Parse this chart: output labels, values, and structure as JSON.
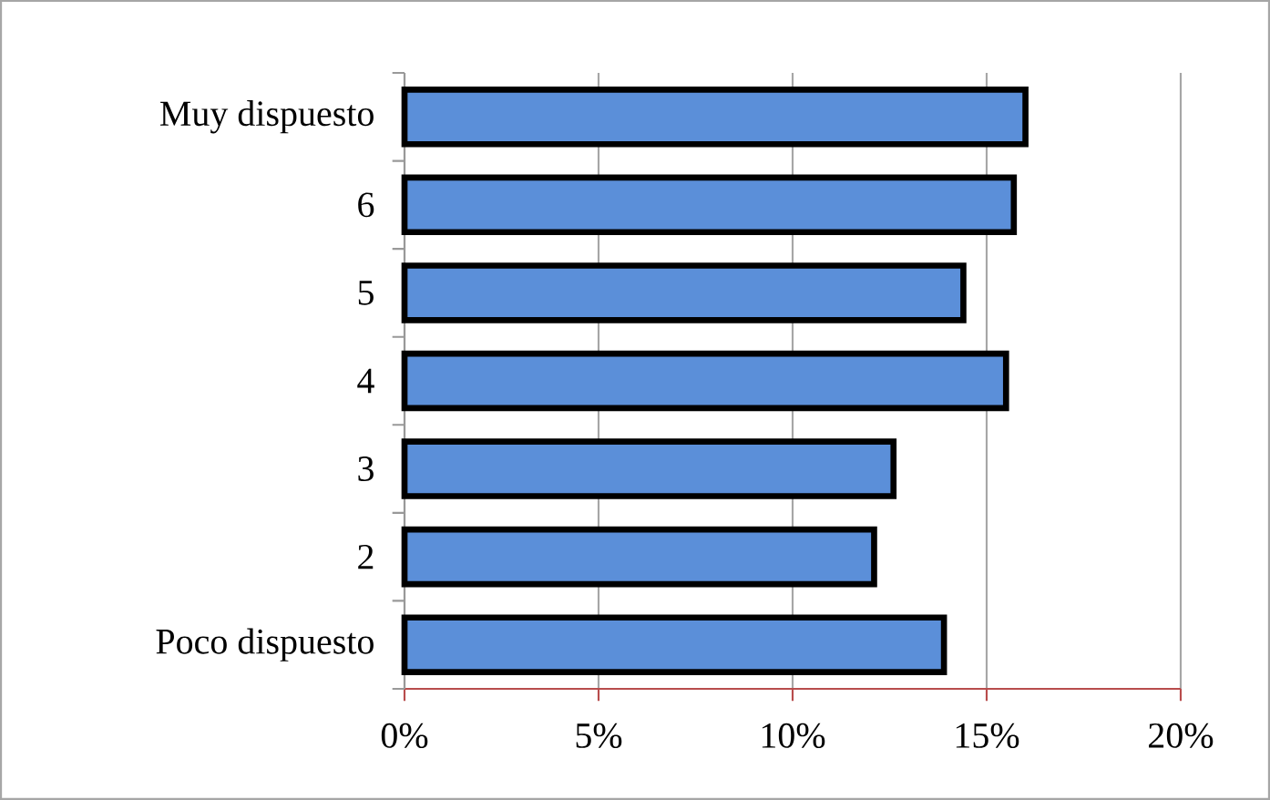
{
  "chart_data": {
    "type": "bar",
    "orientation": "horizontal",
    "categories": [
      "Muy dispuesto",
      "6",
      "5",
      "4",
      "3",
      "2",
      "Poco dispuesto"
    ],
    "values": [
      16.0,
      15.7,
      14.4,
      15.5,
      12.6,
      12.1,
      13.9
    ],
    "color": "#5b8fd9",
    "xlim": [
      0,
      20
    ],
    "xticks": [
      {
        "value": 0,
        "label": "0%"
      },
      {
        "value": 5,
        "label": "5%"
      },
      {
        "value": 10,
        "label": "10%"
      },
      {
        "value": 15,
        "label": "15%"
      },
      {
        "value": 20,
        "label": "20%"
      }
    ],
    "grid": "x"
  }
}
